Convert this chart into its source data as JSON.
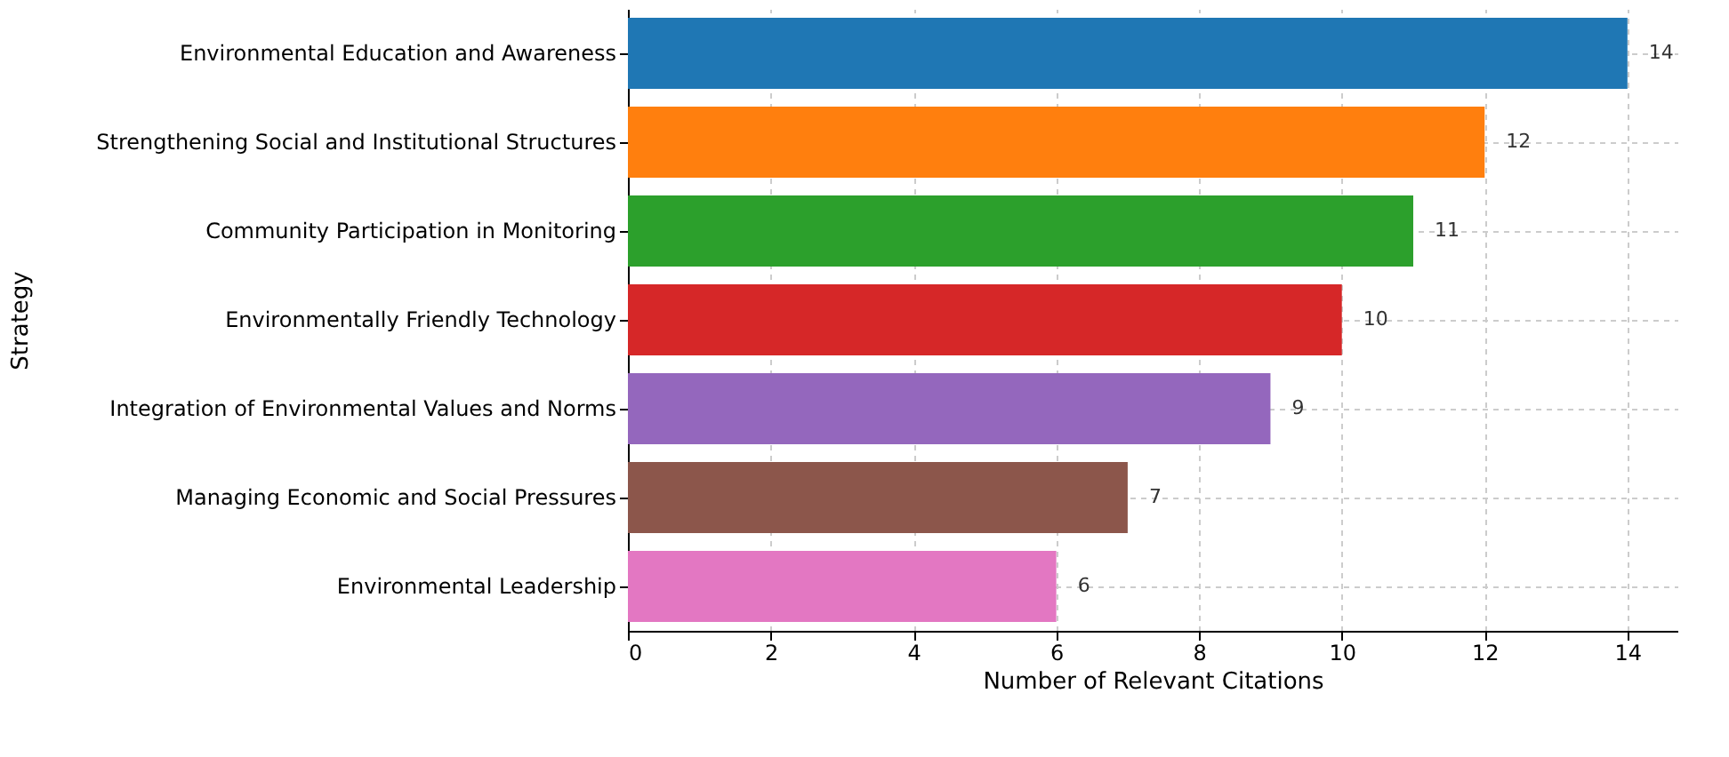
{
  "chart_data": {
    "type": "bar",
    "orientation": "horizontal",
    "xlabel": "Number of Relevant Citations",
    "ylabel": "Strategy",
    "categories": [
      "Environmental Education and Awareness",
      "Strengthening Social and Institutional Structures",
      "Community Participation in Monitoring",
      "Environmentally Friendly Technology",
      "Integration of Environmental Values and Norms",
      "Managing Economic and Social Pressures",
      "Environmental Leadership"
    ],
    "values": [
      14,
      12,
      11,
      10,
      9,
      7,
      6
    ],
    "colors": [
      "#1f77b4",
      "#ff7f0e",
      "#2ca02c",
      "#d62728",
      "#9467bd",
      "#8c564b",
      "#e377c2"
    ],
    "xlim": [
      0,
      14.7
    ],
    "xticks": [
      0,
      2,
      4,
      6,
      8,
      10,
      12,
      14
    ],
    "grid": true,
    "data_labels": true
  }
}
